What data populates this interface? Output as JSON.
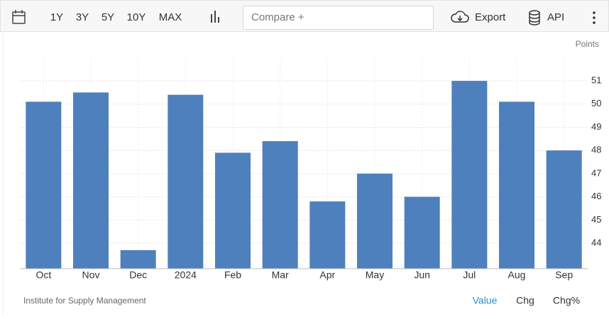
{
  "toolbar": {
    "ranges": [
      "1Y",
      "3Y",
      "5Y",
      "10Y",
      "MAX"
    ],
    "compare": "Compare +",
    "export": "Export",
    "api": "API"
  },
  "chart_data": {
    "type": "bar",
    "unit": "Points",
    "categories": [
      "Oct",
      "Nov",
      "Dec",
      "2024",
      "Feb",
      "Mar",
      "Apr",
      "May",
      "Jun",
      "Jul",
      "Aug",
      "Sep"
    ],
    "values": [
      50.1,
      50.5,
      43.7,
      50.4,
      47.9,
      48.4,
      45.8,
      47.0,
      46.0,
      51.0,
      50.1,
      48.0
    ],
    "color": "#4d80bd",
    "ylim": [
      42.9,
      51.95
    ],
    "yticks": [
      44,
      45,
      46,
      47,
      48,
      49,
      50,
      51
    ],
    "grid": true
  },
  "footer": {
    "source": "Institute for Supply Management",
    "tabs": [
      "Value",
      "Chg",
      "Chg%"
    ]
  }
}
